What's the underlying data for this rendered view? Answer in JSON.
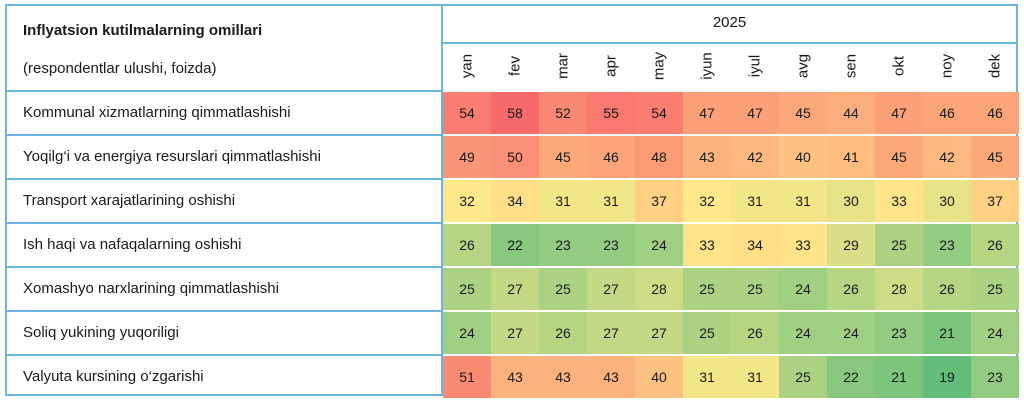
{
  "chart_data": {
    "type": "heatmap",
    "title": "Inflyatsion kutilmalarning omillari",
    "subtitle": "(respondentlar ulushi, foizda)",
    "year": "2025",
    "columns": [
      "yan",
      "fev",
      "mar",
      "apr",
      "may",
      "iyun",
      "iyul",
      "avg",
      "sen",
      "okt",
      "noy",
      "dek"
    ],
    "rows": [
      {
        "label": "Kommunal xizmatlarning qimmatlashishi",
        "values": [
          54,
          58,
          52,
          55,
          54,
          47,
          47,
          45,
          44,
          47,
          46,
          46
        ]
      },
      {
        "label": "Yoqilg‘i va energiya resurslari qimmatlashishi",
        "values": [
          49,
          50,
          45,
          46,
          48,
          43,
          42,
          40,
          41,
          45,
          42,
          45
        ]
      },
      {
        "label": "Transport xarajatlarining oshishi",
        "values": [
          32,
          34,
          31,
          31,
          37,
          32,
          31,
          31,
          30,
          33,
          30,
          37
        ]
      },
      {
        "label": "Ish haqi va nafaqalarning oshishi",
        "values": [
          26,
          22,
          23,
          23,
          24,
          33,
          34,
          33,
          29,
          25,
          23,
          26
        ]
      },
      {
        "label": "Xomashyo narxlarining qimmatlashishi",
        "values": [
          25,
          27,
          25,
          27,
          28,
          25,
          25,
          24,
          26,
          28,
          26,
          25
        ]
      },
      {
        "label": "Soliq yukining yuqoriligi",
        "values": [
          24,
          27,
          26,
          27,
          27,
          25,
          26,
          24,
          24,
          23,
          21,
          24
        ]
      },
      {
        "label": "Valyuta kursining o‘zgarishi",
        "values": [
          51,
          43,
          43,
          43,
          40,
          31,
          31,
          25,
          22,
          21,
          19,
          23
        ]
      }
    ],
    "color_scale": {
      "low": "#63be7b",
      "mid": "#fee98a",
      "high": "#f8696b"
    }
  }
}
